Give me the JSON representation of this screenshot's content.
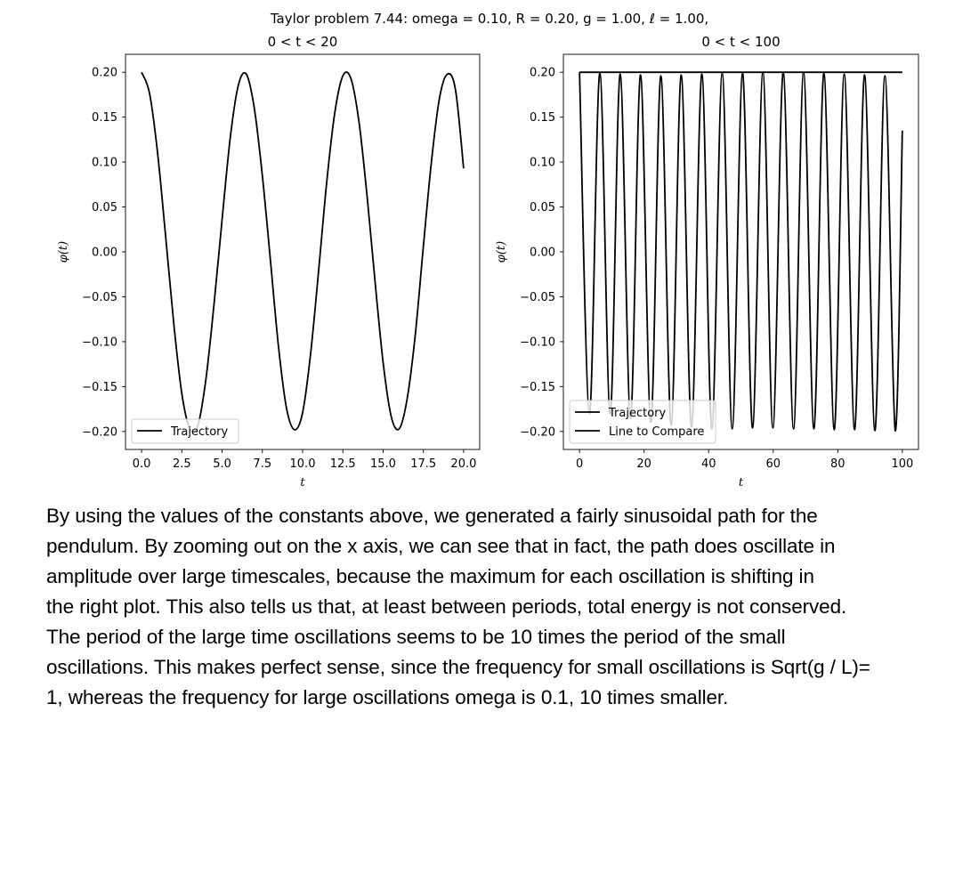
{
  "figure": {
    "suptitle": "Taylor problem 7.44:   omega = 0.10,  R = 0.20,  g = 1.00,  ℓ = 1.00,"
  },
  "chart_data": [
    {
      "type": "line",
      "title": "0 < t < 20",
      "xlabel": "t",
      "ylabel": "φ(t)",
      "xlim": [
        -1,
        21
      ],
      "ylim": [
        -0.22,
        0.22
      ],
      "xticks": [
        0,
        2.5,
        5,
        7.5,
        10,
        12.5,
        15,
        17.5,
        20
      ],
      "xtick_labels": [
        "0.0",
        "2.5",
        "5.0",
        "7.5",
        "10.0",
        "12.5",
        "15.0",
        "17.5",
        "20.0"
      ],
      "yticks": [
        0.2,
        0.15,
        0.1,
        0.05,
        0.0,
        -0.05,
        -0.1,
        -0.15,
        -0.2
      ],
      "ytick_labels": [
        "0.20",
        "0.15",
        "0.10",
        "0.05",
        "0.00",
        "−0.05",
        "−0.10",
        "−0.15",
        "−0.20"
      ],
      "legend": {
        "position": "lower left",
        "entries": [
          "Trajectory"
        ]
      },
      "grid": false,
      "series": [
        {
          "name": "Trajectory",
          "color": "#000000",
          "x": [
            0.0,
            0.5,
            1.0,
            1.5,
            2.0,
            2.5,
            3.0,
            3.5,
            4.0,
            4.5,
            5.0,
            5.5,
            6.0,
            6.5,
            7.0,
            7.5,
            8.0,
            8.5,
            9.0,
            9.5,
            10.0,
            10.5,
            11.0,
            11.5,
            12.0,
            12.5,
            13.0,
            13.5,
            14.0,
            14.5,
            15.0,
            15.5,
            16.0,
            16.5,
            17.0,
            17.5,
            18.0,
            18.5,
            19.0,
            19.5,
            20.0
          ],
          "y": [
            0.2,
            0.176,
            0.109,
            0.016,
            -0.08,
            -0.158,
            -0.197,
            -0.193,
            -0.141,
            -0.058,
            0.036,
            0.126,
            0.185,
            0.198,
            0.16,
            0.085,
            -0.009,
            -0.105,
            -0.174,
            -0.198,
            -0.179,
            -0.113,
            -0.02,
            0.078,
            0.155,
            0.196,
            0.193,
            0.145,
            0.063,
            -0.033,
            -0.123,
            -0.183,
            -0.197,
            -0.163,
            -0.092,
            0.006,
            0.1,
            0.171,
            0.198,
            0.18,
            0.093
          ]
        }
      ]
    },
    {
      "type": "line",
      "title": "0 < t < 100",
      "xlabel": "t",
      "ylabel": "φ(t)",
      "xlim": [
        -5,
        105
      ],
      "ylim": [
        -0.22,
        0.22
      ],
      "xticks": [
        0,
        20,
        40,
        60,
        80,
        100
      ],
      "xtick_labels": [
        "0",
        "20",
        "40",
        "60",
        "80",
        "100"
      ],
      "yticks": [
        0.2,
        0.15,
        0.1,
        0.05,
        0.0,
        -0.05,
        -0.1,
        -0.15,
        -0.2
      ],
      "ytick_labels": [
        "0.20",
        "0.15",
        "0.10",
        "0.05",
        "0.00",
        "−0.05",
        "−0.10",
        "−0.15",
        "−0.20"
      ],
      "legend": {
        "position": "lower left",
        "entries": [
          "Trajectory",
          "Line to Compare"
        ]
      },
      "grid": false,
      "series": [
        {
          "name": "Trajectory",
          "color": "#000000",
          "x": [
            0.0,
            3.1,
            6.3,
            9.5,
            12.6,
            15.8,
            18.9,
            22.1,
            25.2,
            28.4,
            31.5,
            34.7,
            37.9,
            41.0,
            44.2,
            47.3,
            50.5,
            53.6,
            56.8,
            59.9,
            63.1,
            66.3,
            69.4,
            72.6,
            75.7,
            78.9,
            82.0,
            85.2,
            88.3,
            91.5,
            94.6,
            97.8,
            100.0
          ],
          "y": [
            0.2,
            -0.18,
            0.199,
            -0.181,
            0.198,
            -0.185,
            0.197,
            -0.19,
            0.196,
            -0.193,
            0.197,
            -0.195,
            0.198,
            -0.197,
            0.199,
            -0.197,
            0.199,
            -0.196,
            0.2,
            -0.196,
            0.2,
            -0.197,
            0.2,
            -0.197,
            0.199,
            -0.198,
            0.198,
            -0.198,
            0.197,
            -0.199,
            0.196,
            -0.199,
            0.135
          ]
        },
        {
          "name": "Line to Compare",
          "color": "#000000",
          "x": [
            0,
            100
          ],
          "y": [
            0.2,
            0.2
          ]
        }
      ]
    }
  ],
  "paragraph": "By using the values of the constants above, we generated a fairly sinusoidal path for the\npendulum. By zooming out on the x axis, we can see that in fact, the path does oscillate in\namplitude over large timescales, because the maximum for each oscillation is shifting in\nthe right plot. This also tells us that, at least between periods, total energy is not conserved.\nThe period of the large time oscillations seems to be 10 times the period of the small\noscillations. This makes perfect sense, since the frequency for small oscillations is Sqrt(g / L)=\n1, whereas the frequency for large oscillations omega is 0.1, 10 times smaller."
}
